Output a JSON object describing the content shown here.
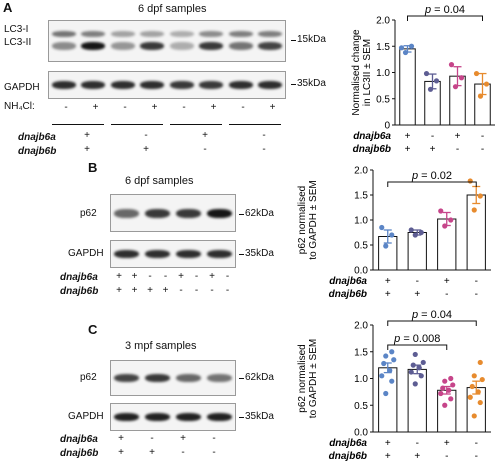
{
  "panels": {
    "A": {
      "letter": "A",
      "title": "6 dpf samples",
      "blot_labels": {
        "lc3i": "LC3-I",
        "lc3ii": "LC3-II",
        "gapdh": "GAPDH"
      },
      "kda": {
        "lc3": "15kDa",
        "gapdh": "35kDa"
      },
      "nh4cl_label": "NH₄Cl:",
      "nh4cl": [
        "-",
        "+",
        "-",
        "+",
        "-",
        "+",
        "-",
        "+"
      ],
      "genotype_labels": [
        "dnajb6a",
        "dnajb6b"
      ],
      "dnajb6a": [
        "+",
        "-",
        "+",
        "-"
      ],
      "dnajb6b": [
        "+",
        "+",
        "-",
        "-"
      ]
    },
    "B": {
      "letter": "B",
      "title": "6 dpf samples",
      "blot_labels": {
        "p62": "p62",
        "gapdh": "GAPDH"
      },
      "kda": {
        "p62": "62kDa",
        "gapdh": "35kDa"
      },
      "genotype_labels": [
        "dnajb6a",
        "dnajb6b"
      ],
      "dnajb6a": [
        "+",
        "+",
        "-",
        "-",
        "+",
        "-",
        "+",
        "-"
      ],
      "dnajb6b": [
        "+",
        "+",
        "+",
        "+",
        "-",
        "-",
        "-",
        "-"
      ]
    },
    "C": {
      "letter": "C",
      "title": "3 mpf samples",
      "blot_labels": {
        "p62": "p62",
        "gapdh": "GAPDH"
      },
      "kda": {
        "p62": "62kDa",
        "gapdh": "35kDa"
      },
      "genotype_labels": [
        "dnajb6a",
        "dnajb6b"
      ],
      "dnajb6a": [
        "+",
        "-",
        "+",
        "-"
      ],
      "dnajb6b": [
        "+",
        "+",
        "-",
        "-"
      ]
    }
  },
  "chart_data": [
    {
      "type": "bar",
      "ylabel": "Normalised change in LC3II ± SEM",
      "ylim": [
        0,
        2
      ],
      "yticks": [
        "0",
        "0.5",
        "1.0",
        "1.5",
        "2.0"
      ],
      "categories": [
        "dnajb6a +/dnajb6b +",
        "dnajb6a -/dnajb6b +",
        "dnajb6a +/dnajb6b -",
        "dnajb6a -/dnajb6b -"
      ],
      "values": [
        1.45,
        0.83,
        0.93,
        0.78
      ],
      "errors": [
        0.06,
        0.14,
        0.18,
        0.2
      ],
      "points": [
        [
          1.38,
          1.5,
          1.47
        ],
        [
          0.68,
          0.84,
          0.98
        ],
        [
          0.73,
          0.9,
          1.15
        ],
        [
          0.55,
          0.78,
          0.98
        ]
      ],
      "colors": [
        "#5b85c6",
        "#5d5d93",
        "#c6458a",
        "#e78b2e"
      ],
      "annotation": {
        "text": "p = 0.04",
        "from": 0,
        "to": 3
      },
      "xlabel_rows": [
        "dnajb6a",
        "dnajb6b"
      ],
      "dnajb6a": [
        "+",
        "-",
        "+",
        "-"
      ],
      "dnajb6b": [
        "+",
        "+",
        "-",
        "-"
      ]
    },
    {
      "type": "bar",
      "ylabel": "p62 normalised to GAPDH ± SEM",
      "ylim": [
        0,
        2
      ],
      "yticks": [
        "0.0",
        "0.5",
        "1.0",
        "1.5",
        "2.0"
      ],
      "categories": [
        "dnajb6a +/dnajb6b +",
        "dnajb6a -/dnajb6b +",
        "dnajb6a +/dnajb6b -",
        "dnajb6a -/dnajb6b -"
      ],
      "values": [
        0.67,
        0.75,
        1.02,
        1.5
      ],
      "errors": [
        0.13,
        0.05,
        0.13,
        0.17
      ],
      "points": [
        [
          0.48,
          0.7,
          0.85
        ],
        [
          0.7,
          0.75,
          0.8
        ],
        [
          0.88,
          1.0,
          1.18
        ],
        [
          1.2,
          1.48,
          1.78
        ]
      ],
      "colors": [
        "#5b85c6",
        "#5d5d93",
        "#c6458a",
        "#e78b2e"
      ],
      "annotation": {
        "text": "p = 0.02",
        "from": 0,
        "to": 3
      },
      "xlabel_rows": [
        "dnajb6a",
        "dnajb6b"
      ],
      "dnajb6a": [
        "+",
        "-",
        "+",
        "-"
      ],
      "dnajb6b": [
        "+",
        "+",
        "-",
        "-"
      ]
    },
    {
      "type": "bar",
      "ylabel": "p62 normalised to GAPDH ± SEM",
      "ylim": [
        0,
        2
      ],
      "yticks": [
        "0.0",
        "0.5",
        "1.0",
        "1.5",
        "2.0"
      ],
      "categories": [
        "dnajb6a +/dnajb6b +",
        "dnajb6a -/dnajb6b +",
        "dnajb6a +/dnajb6b -",
        "dnajb6a -/dnajb6b -"
      ],
      "values": [
        1.2,
        1.17,
        0.78,
        0.83
      ],
      "errors": [
        0.09,
        0.08,
        0.07,
        0.12
      ],
      "points": [
        [
          0.72,
          0.95,
          1.05,
          1.15,
          1.28,
          1.35,
          1.42,
          1.5
        ],
        [
          0.9,
          1.05,
          1.12,
          1.2,
          1.25,
          1.3,
          1.45
        ],
        [
          0.5,
          0.62,
          0.72,
          0.78,
          0.82,
          0.88,
          0.95,
          1.0
        ],
        [
          0.3,
          0.55,
          0.65,
          0.75,
          0.85,
          0.98,
          1.05,
          1.3
        ]
      ],
      "colors": [
        "#5b85c6",
        "#5d5d93",
        "#c6458a",
        "#e78b2e"
      ],
      "annotation": [
        {
          "text": "p = 0.008",
          "from": 0,
          "to": 2
        },
        {
          "text": "p = 0.04",
          "from": 0,
          "to": 3
        }
      ],
      "xlabel_rows": [
        "dnajb6a",
        "dnajb6b"
      ],
      "dnajb6a": [
        "+",
        "-",
        "+",
        "-"
      ],
      "dnajb6b": [
        "+",
        "+",
        "-",
        "-"
      ]
    }
  ]
}
